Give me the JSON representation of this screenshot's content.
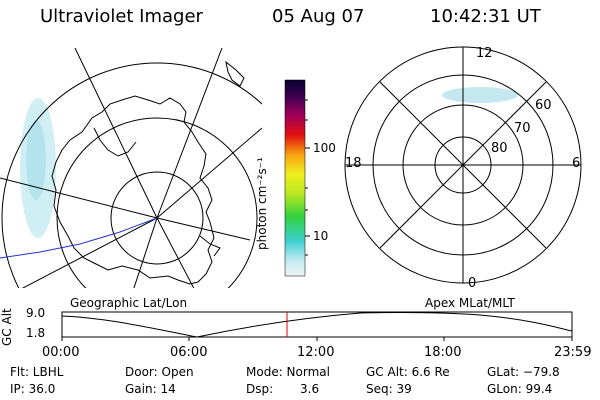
{
  "header": {
    "instrument": "Ultraviolet Imager",
    "date": "05 Aug 07",
    "time": "10:42:31 UT"
  },
  "colorbar": {
    "unit_label": "photon cm⁻²s⁻¹",
    "tick_100": "100",
    "tick_10": "10"
  },
  "polar_plot": {
    "label_top": "12",
    "label_left": "18",
    "label_right": "6",
    "label_bottom": "0",
    "ring_labels": [
      "60",
      "70",
      "80"
    ]
  },
  "panel_labels": {
    "left": "Geographic Lat/Lon",
    "right": "Apex MLat/MLT"
  },
  "altitude_plot": {
    "axis_label": "GC Alt",
    "tick_high": "9.0",
    "tick_low": "1.8",
    "time_ticks": [
      "00:00",
      "06:00",
      "12:00",
      "18:00",
      "23:59"
    ]
  },
  "footer": {
    "filter": "Flt: LBHL",
    "ip": "IP: 36.0",
    "door": "Door: Open",
    "gain": "Gain: 14",
    "mode": "Mode: Normal",
    "dsp_label": "Dsp:",
    "dsp_value": "3.6",
    "gc_alt": "GC Alt: 6.6 Re",
    "seq": "Seq: 39",
    "glat": "GLat: −79.8",
    "glon": "GLon: 99.4"
  },
  "colors": {
    "track_line": "#2233cc",
    "time_marker": "#dd0000",
    "aurora": "#bfe6ee"
  }
}
